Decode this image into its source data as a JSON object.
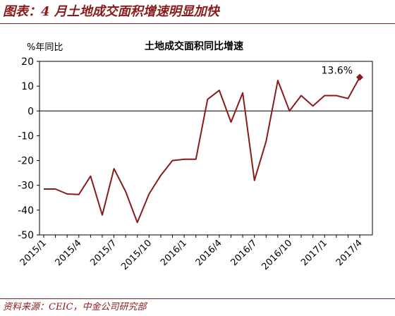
{
  "figure": {
    "title": "图表：4 月土地成交面积增速明显加快",
    "source": "资料来源：CEIC，中金公司研究部"
  },
  "chart_data": {
    "type": "line",
    "title": "土地成交面积同比增速",
    "ylabel": "%年同比",
    "xlabel": "",
    "ylim": [
      -50,
      20
    ],
    "yticks": [
      20,
      10,
      0,
      -10,
      -20,
      -30,
      -40,
      -50
    ],
    "grid": false,
    "color": "#8b1a1a",
    "categories": [
      "2015/1",
      "2015/2",
      "2015/3",
      "2015/4",
      "2015/5",
      "2015/6",
      "2015/7",
      "2015/8",
      "2015/9",
      "2015/10",
      "2015/11",
      "2015/12",
      "2016/1",
      "2016/2",
      "2016/3",
      "2016/4",
      "2016/5",
      "2016/6",
      "2016/7",
      "2016/8",
      "2016/9",
      "2016/10",
      "2016/11",
      "2016/12",
      "2017/1",
      "2017/2",
      "2017/3",
      "2017/4"
    ],
    "xtick_labels": [
      "2015/1",
      "2015/4",
      "2015/7",
      "2015/10",
      "2016/1",
      "2016/4",
      "2016/7",
      "2016/10",
      "2017/1",
      "2017/4"
    ],
    "series": [
      {
        "values": [
          -31.5,
          -31.5,
          -33.5,
          -33.7,
          -26.3,
          -42,
          -23.3,
          -32.5,
          -45,
          -33.5,
          -26,
          -20,
          -19.5,
          -19.5,
          4.7,
          8.3,
          -4.5,
          7.3,
          -28,
          -12.2,
          12.3,
          0,
          6.2,
          2,
          6.2,
          6.2,
          5,
          13.6
        ]
      }
    ],
    "annotation": {
      "text": "13.6%",
      "category": "2017/4",
      "value": 13.6
    }
  }
}
